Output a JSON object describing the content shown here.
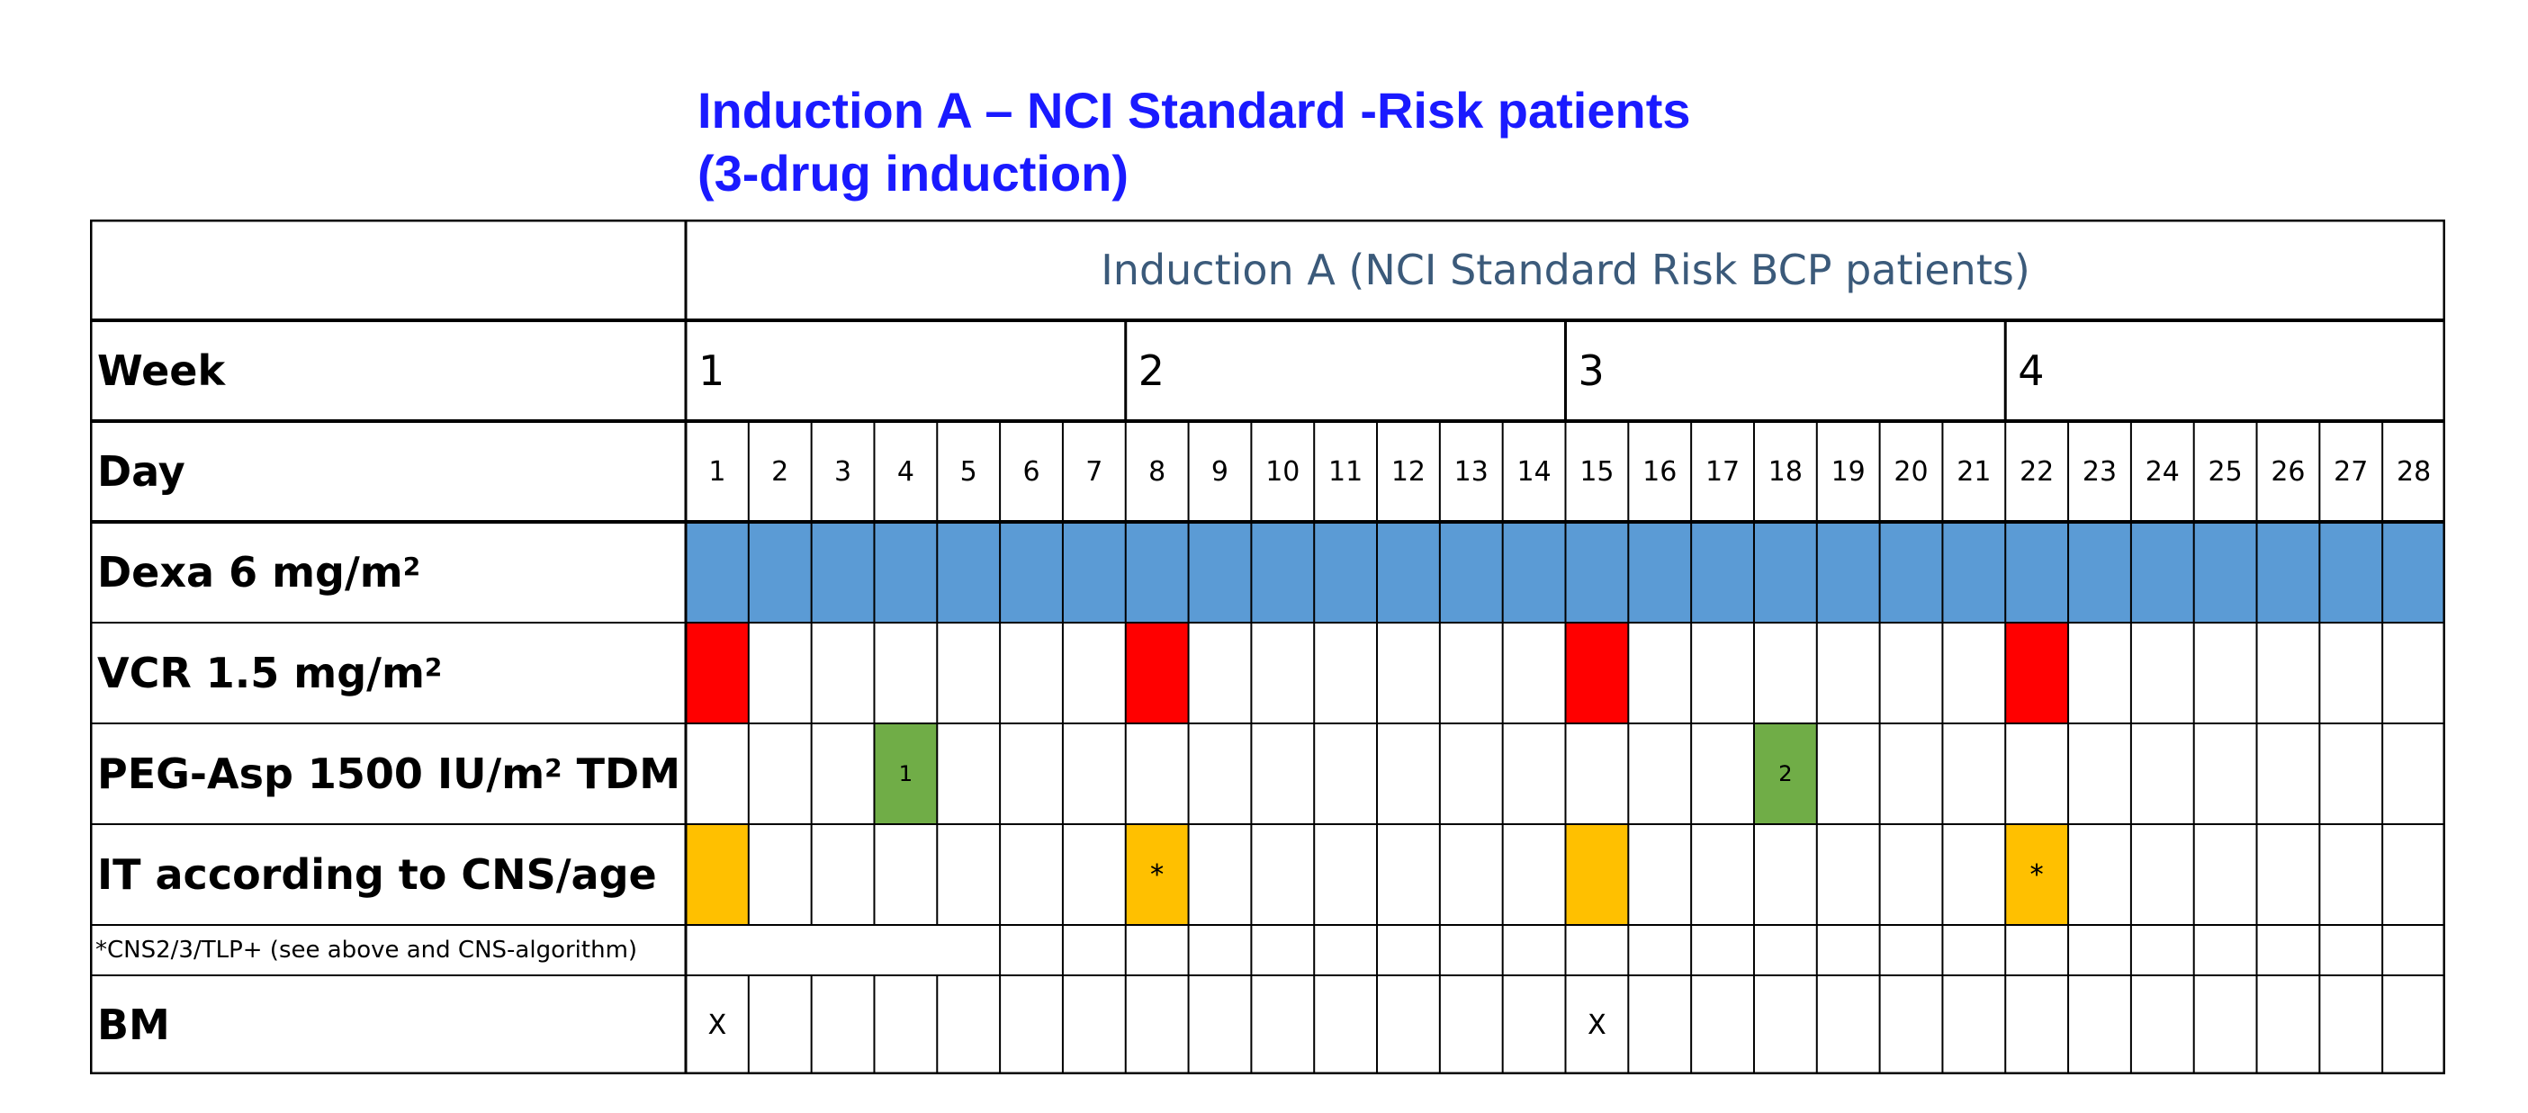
{
  "title": {
    "line1": "Induction A – NCI Standard -Risk patients",
    "line2": "(3-drug induction)"
  },
  "table": {
    "header": "Induction A (NCI Standard Risk BCP patients)",
    "week_label": "Week",
    "weeks": [
      "1",
      "2",
      "3",
      "4"
    ],
    "day_label": "Day",
    "days": [
      "1",
      "2",
      "3",
      "4",
      "5",
      "6",
      "7",
      "8",
      "9",
      "10",
      "11",
      "12",
      "13",
      "14",
      "15",
      "16",
      "17",
      "18",
      "19",
      "20",
      "21",
      "22",
      "23",
      "24",
      "25",
      "26",
      "27",
      "28"
    ],
    "rows": {
      "dexa": {
        "label": "Dexa 6 mg/m",
        "sup": "2",
        "color": "#5b9bd5",
        "days": [
          1,
          2,
          3,
          4,
          5,
          6,
          7,
          8,
          9,
          10,
          11,
          12,
          13,
          14,
          15,
          16,
          17,
          18,
          19,
          20,
          21,
          22,
          23,
          24,
          25,
          26,
          27,
          28
        ]
      },
      "vcr": {
        "label": "VCR 1.5 mg/m",
        "sup": "2",
        "color": "#ff0000",
        "days": [
          1,
          8,
          15,
          22
        ]
      },
      "peg": {
        "label": "PEG-Asp 1500 IU/m",
        "sup": "2",
        "suffix": " TDM",
        "color": "#70ad47",
        "marks": [
          {
            "day": 4,
            "text": "1"
          },
          {
            "day": 18,
            "text": "2"
          }
        ]
      },
      "it": {
        "label": "IT according to CNS/age",
        "color": "#ffc000",
        "marks": [
          {
            "day": 1,
            "text": ""
          },
          {
            "day": 8,
            "text": "*"
          },
          {
            "day": 15,
            "text": ""
          },
          {
            "day": 22,
            "text": "*"
          }
        ]
      },
      "footnote": "*CNS2/3/TLP+ (see above and CNS-algorithm)",
      "bm": {
        "label": "BM",
        "marks": [
          {
            "day": 1,
            "text": "X"
          },
          {
            "day": 15,
            "text": "X"
          }
        ]
      }
    }
  }
}
